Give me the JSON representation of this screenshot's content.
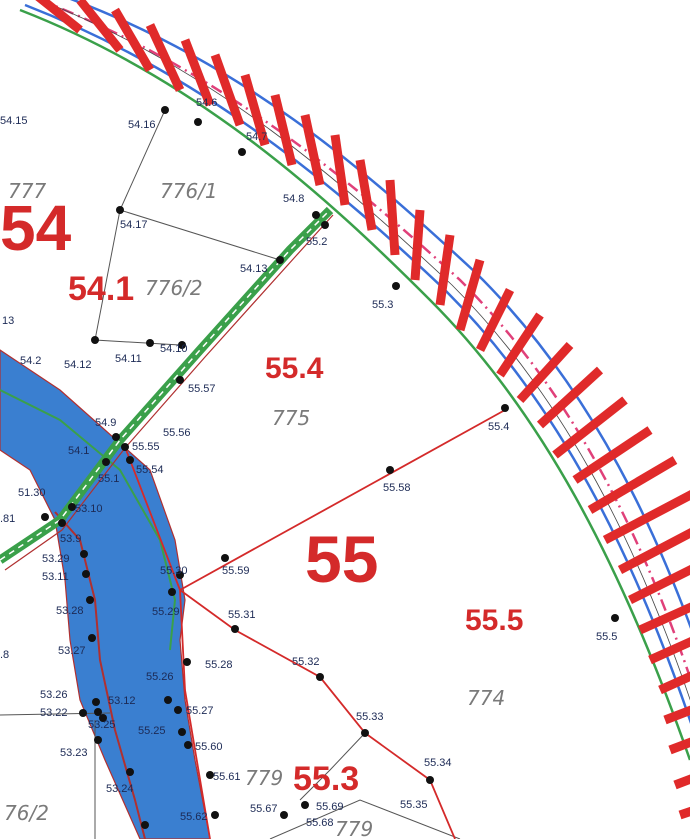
{
  "map": {
    "zone_labels": {
      "z54": "54",
      "z54_1": "54.1",
      "z55": "55",
      "z55_3": "55.3",
      "z55_4": "55.4",
      "z55_5": "55.5"
    },
    "parcel_labels": {
      "p777": "777",
      "p776_1": "776/1",
      "p776_2": "776/2",
      "p775": "775",
      "p774": "774",
      "p779": "779",
      "p776_2b": "76/2",
      "p779b": "779"
    },
    "point_labels": {
      "l54_15": "54.15",
      "l54_16": "54.16",
      "l54_6": "54.6",
      "l54_7": "54.7",
      "l54_8": "54.8",
      "l54_17": "54.17",
      "l55_2": "55.2",
      "l54_13": "54.13",
      "l55_3": "55.3",
      "l13": "13",
      "l54_2": "54.2",
      "l54_12": "54.12",
      "l54_11": "54.11",
      "l54_10": "54.10",
      "l55_57": "55.57",
      "l55_4": "55.4",
      "l54_9": "54.9",
      "l55_56": "55.56",
      "l54_1": "54.1",
      "l55_55": "55.55",
      "l55_1": "55.1",
      "l55_54": "55.54",
      "l55_58": "55.58",
      "l51_30": "51.30",
      "l53_10": "53.10",
      "l81": ".81",
      "l53_9": "53.9",
      "l53_29": "53.29",
      "l55_30": "55.30",
      "l55_59": "55.59",
      "l53_11": "53.11",
      "l55_29": "55.29",
      "l55_31": "55.31",
      "l53_28": "53.28",
      "l55_5": "55.5",
      "l8": ".8",
      "l53_27": "53.27",
      "l55_26": "55.26",
      "l55_28": "55.28",
      "l55_32": "55.32",
      "l53_26": "53.26",
      "l53_12": "53.12",
      "l53_22": "53.22",
      "l55_27": "55.27",
      "l53_25": "53.25",
      "l55_25": "55.25",
      "l55_33": "55.33",
      "l55_60": "55.60",
      "l53_23": "53.23",
      "l55_34": "55.34",
      "l55_61": "55.61",
      "l53_24": "53.24",
      "l55_35": "55.35",
      "l55_67": "55.67",
      "l55_69": "55.69",
      "l55_68": "55.68",
      "l55_62": "55.62"
    },
    "colors": {
      "zone_text": "#d42a2a",
      "point_text": "#1c2a55",
      "parcel_text": "#7a7a7a",
      "water_fill": "#3a7fd0",
      "rail_red": "#e02a2a",
      "rail_blue": "#3a6fd8",
      "rail_green": "#3aa04a",
      "rail_pink": "#e0407a",
      "boundary_red": "#d42a2a",
      "boundary_black": "#333333"
    }
  }
}
